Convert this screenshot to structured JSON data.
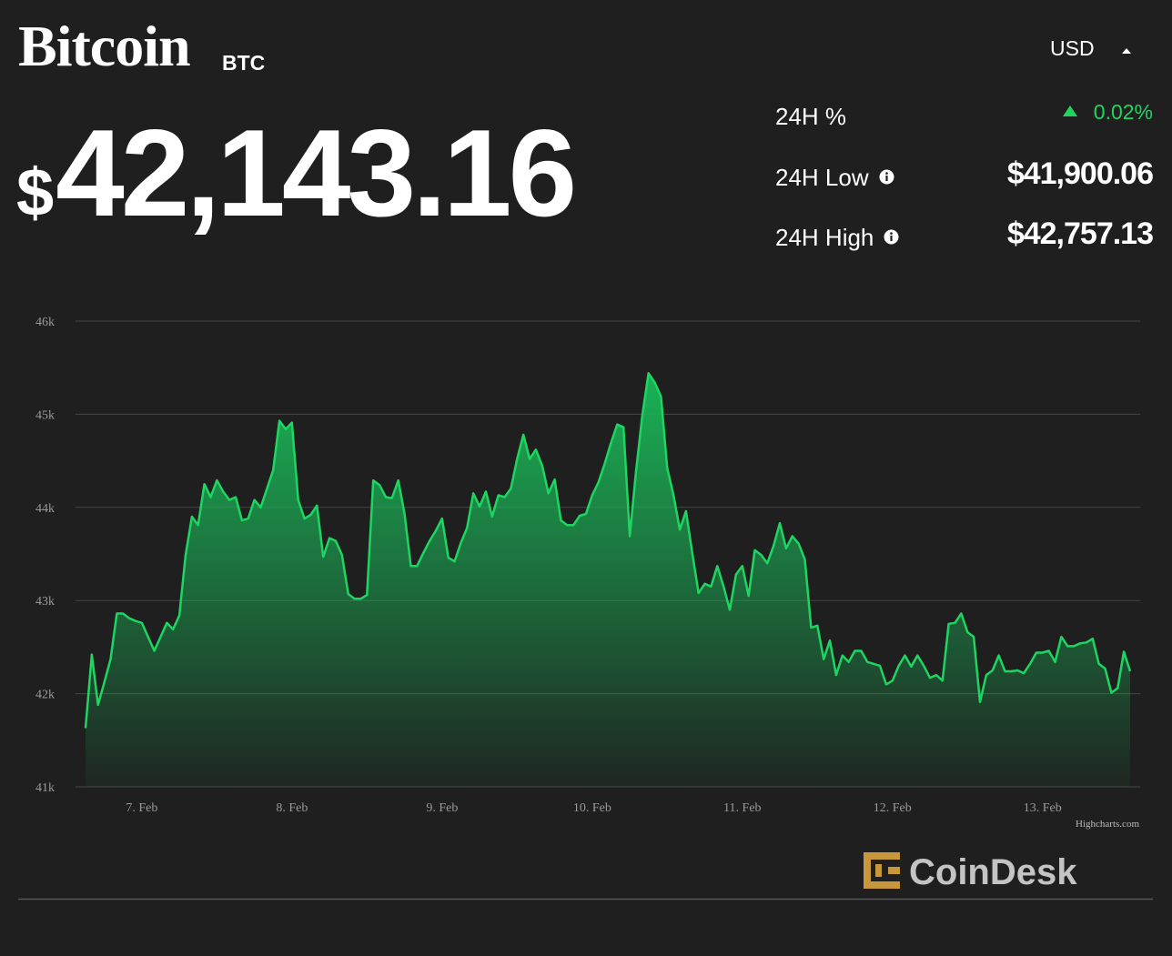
{
  "header": {
    "title": "Bitcoin",
    "symbol": "BTC",
    "price": "$42,143.16",
    "currency": "USD"
  },
  "stats": [
    {
      "label": "24H %",
      "value": "0.02%"
    },
    {
      "label": "24H Low",
      "value": "$41,900.06"
    },
    {
      "label": "24H High",
      "value": "$42,757.13"
    }
  ],
  "chart_data": {
    "type": "area",
    "color": "#1fd562",
    "x": [
      -9,
      -8,
      -7,
      -6,
      -5,
      -4,
      -3,
      -2,
      -1,
      0,
      1,
      2,
      3,
      4,
      5,
      6,
      7,
      8,
      9,
      10,
      11,
      12,
      13,
      14,
      15,
      16,
      17,
      18,
      19,
      20,
      21,
      22,
      23,
      24,
      25,
      26,
      27,
      28,
      29,
      30,
      31,
      32,
      33,
      34,
      35,
      36,
      37,
      38,
      39,
      40,
      41,
      42,
      43,
      44,
      45,
      46,
      47,
      48,
      49,
      50,
      51,
      52,
      53,
      54,
      55,
      56,
      57,
      58,
      59,
      60,
      61,
      62,
      63,
      64,
      65,
      66,
      67,
      68,
      69,
      70,
      71,
      72,
      73,
      74,
      75,
      76,
      77,
      78,
      79,
      80,
      81,
      82,
      83,
      84,
      85,
      86,
      87,
      88,
      89,
      90,
      91,
      92,
      93,
      94,
      95,
      96,
      97,
      98,
      99,
      100,
      101,
      102,
      103,
      104,
      105,
      106,
      107,
      108,
      109,
      110,
      111,
      112,
      113,
      114,
      115,
      116,
      117,
      118,
      119,
      120,
      121,
      122,
      123,
      124,
      125,
      126,
      127,
      128,
      129,
      130,
      131,
      132,
      133,
      134,
      135,
      136,
      137,
      138,
      139,
      140,
      141,
      142,
      143,
      144,
      145,
      146,
      147,
      148,
      149,
      150,
      151,
      152,
      153,
      154,
      155,
      156,
      157,
      158
    ],
    "values": [
      41630,
      42420,
      41880,
      42120,
      42370,
      42860,
      42860,
      42810,
      42780,
      42760,
      42610,
      42460,
      42610,
      42760,
      42690,
      42840,
      43490,
      43900,
      43810,
      44250,
      44110,
      44290,
      44170,
      44080,
      44110,
      43860,
      43880,
      44080,
      44000,
      44200,
      44400,
      44930,
      44840,
      44910,
      44080,
      43880,
      43920,
      44020,
      43470,
      43670,
      43640,
      43490,
      43070,
      43020,
      43020,
      43060,
      44290,
      44240,
      44110,
      44100,
      44290,
      43930,
      43370,
      43370,
      43510,
      43640,
      43750,
      43880,
      43460,
      43420,
      43620,
      43780,
      44150,
      44010,
      44170,
      43900,
      44130,
      44110,
      44200,
      44520,
      44780,
      44520,
      44620,
      44450,
      44150,
      44300,
      43860,
      43810,
      43810,
      43910,
      43930,
      44130,
      44270,
      44470,
      44690,
      44890,
      44860,
      43690,
      44380,
      44980,
      45440,
      45340,
      45190,
      44420,
      44130,
      43760,
      43960,
      43510,
      43080,
      43180,
      43150,
      43370,
      43150,
      42900,
      43280,
      43370,
      43050,
      43540,
      43490,
      43400,
      43590,
      43830,
      43560,
      43690,
      43610,
      43440,
      42710,
      42730,
      42370,
      42570,
      42200,
      42410,
      42340,
      42460,
      42460,
      42340,
      42320,
      42300,
      42100,
      42140,
      42300,
      42410,
      42290,
      42410,
      42300,
      42170,
      42200,
      42140,
      42750,
      42760,
      42860,
      42660,
      42610,
      41910,
      42200,
      42250,
      42410,
      42240,
      42240,
      42250,
      42220,
      42320,
      42440,
      42440,
      42460,
      42340,
      42610,
      42510,
      42510,
      42540,
      42550,
      42590,
      42320,
      42270,
      42010,
      42060,
      42450,
      42240
    ],
    "xlim": [
      -10.6,
      159.6
    ],
    "xticks": [
      {
        "value": 0,
        "label": "7. Feb"
      },
      {
        "value": 24,
        "label": "8. Feb"
      },
      {
        "value": 48,
        "label": "9. Feb"
      },
      {
        "value": 72,
        "label": "10. Feb"
      },
      {
        "value": 96,
        "label": "11. Feb"
      },
      {
        "value": 120,
        "label": "12. Feb"
      },
      {
        "value": 144,
        "label": "13. Feb"
      }
    ],
    "ylim": [
      41000,
      46000
    ],
    "yticks": [
      {
        "value": 41000,
        "label": "41k"
      },
      {
        "value": 42000,
        "label": "42k"
      },
      {
        "value": 43000,
        "label": "43k"
      },
      {
        "value": 44000,
        "label": "44k"
      },
      {
        "value": 45000,
        "label": "45k"
      },
      {
        "value": 46000,
        "label": "46k"
      }
    ],
    "grid": true
  },
  "footer": {
    "credit": "Highcharts.com",
    "brand": "CoinDesk"
  }
}
